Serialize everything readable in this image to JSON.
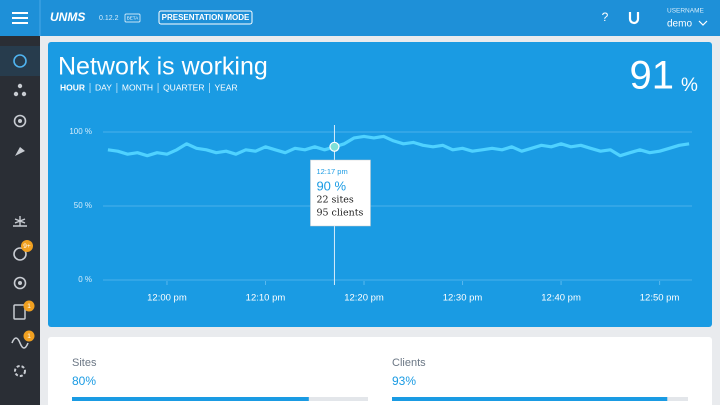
{
  "header": {
    "logo": "UNMS",
    "version": "0.12.2",
    "badge": "BETA",
    "mode_button": "PRESENTATION MODE",
    "help": "?",
    "user_caption": "USERNAME",
    "user": "demo"
  },
  "sidebar": {
    "badges": [
      "9+",
      "1",
      "1"
    ]
  },
  "card": {
    "title": "Network is working",
    "ranges": [
      "HOUR",
      "DAY",
      "MONTH",
      "QUARTER",
      "YEAR"
    ],
    "summary": {
      "value": 91,
      "unit": "%"
    },
    "tooltip": {
      "time": "12:17 pm",
      "value": "90 %",
      "sites": "22 sites",
      "clients": "95 clients"
    }
  },
  "chart_data": {
    "type": "line",
    "x": [
      "11:54 am",
      "11:55 am",
      "11:56 am",
      "11:57 am",
      "11:58 am",
      "11:59 am",
      "12:00 pm",
      "12:01 pm",
      "12:02 pm",
      "12:03 pm",
      "12:04 pm",
      "12:05 pm",
      "12:06 pm",
      "12:07 pm",
      "12:08 pm",
      "12:09 pm",
      "12:10 pm",
      "12:11 pm",
      "12:12 pm",
      "12:13 pm",
      "12:14 pm",
      "12:15 pm",
      "12:16 pm",
      "12:17 pm",
      "12:18 pm",
      "12:19 pm",
      "12:20 pm",
      "12:21 pm",
      "12:22 pm",
      "12:23 pm",
      "12:24 pm",
      "12:25 pm",
      "12:26 pm",
      "12:27 pm",
      "12:28 pm",
      "12:29 pm",
      "12:30 pm",
      "12:31 pm",
      "12:32 pm",
      "12:33 pm",
      "12:34 pm",
      "12:35 pm",
      "12:36 pm",
      "12:37 pm",
      "12:38 pm",
      "12:39 pm",
      "12:40 pm",
      "12:41 pm",
      "12:42 pm",
      "12:43 pm",
      "12:44 pm",
      "12:45 pm",
      "12:46 pm",
      "12:47 pm",
      "12:48 pm",
      "12:49 pm",
      "12:50 pm",
      "12:51 pm",
      "12:52 pm",
      "12:53 pm"
    ],
    "values": [
      88,
      87,
      85,
      86,
      84,
      86,
      85,
      88,
      92,
      89,
      88,
      86,
      87,
      85,
      88,
      87,
      90,
      88,
      86,
      89,
      88,
      90,
      88,
      90,
      92,
      96,
      97,
      96,
      97,
      94,
      92,
      93,
      91,
      90,
      91,
      88,
      89,
      87,
      88,
      89,
      88,
      90,
      87,
      89,
      91,
      90,
      92,
      90,
      91,
      89,
      87,
      88,
      84,
      86,
      88,
      86,
      87,
      89,
      91,
      92
    ],
    "color": "#4fd2ff",
    "xlim": [
      "11:53 am",
      "12:54 pm"
    ],
    "xticks": [
      "12:00 pm",
      "12:10 pm",
      "12:20 pm",
      "12:30 pm",
      "12:40 pm",
      "12:50 pm"
    ],
    "ylim": [
      0,
      100
    ],
    "yticks": [
      {
        "value": 0,
        "label": "0 %"
      },
      {
        "value": 50,
        "label": "50 %"
      },
      {
        "value": 100,
        "label": "100 %"
      }
    ],
    "grid": true
  },
  "stats": [
    {
      "label": "Sites",
      "value": 80,
      "value_label": "80%"
    },
    {
      "label": "Clients",
      "value": 93,
      "value_label": "93%"
    }
  ]
}
